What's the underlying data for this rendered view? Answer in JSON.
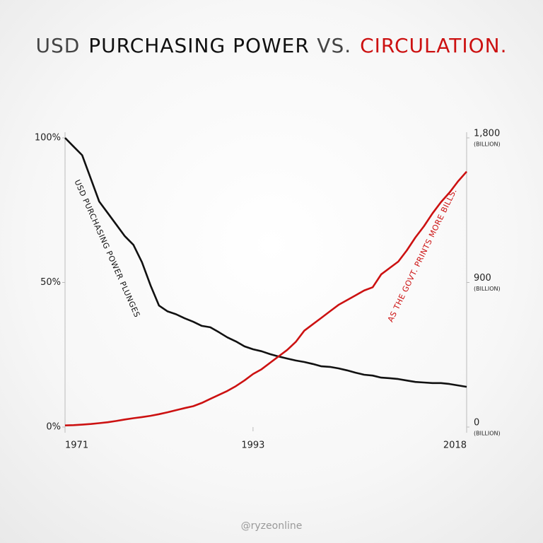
{
  "chart_data": {
    "type": "line",
    "title": [
      {
        "text": "USD",
        "color": "#444444"
      },
      {
        "text": "PURCHASING POWER",
        "color": "#111111"
      },
      {
        "text": "VS.",
        "color": "#444444"
      },
      {
        "text": "CIRCULATION.",
        "color": "#cc1111"
      }
    ],
    "x": [
      1971,
      1972,
      1973,
      1974,
      1975,
      1976,
      1977,
      1978,
      1979,
      1980,
      1981,
      1982,
      1983,
      1984,
      1985,
      1986,
      1987,
      1988,
      1989,
      1990,
      1991,
      1992,
      1993,
      1994,
      1995,
      1996,
      1997,
      1998,
      1999,
      2000,
      2001,
      2002,
      2003,
      2004,
      2005,
      2006,
      2007,
      2008,
      2009,
      2010,
      2011,
      2012,
      2013,
      2014,
      2015,
      2016,
      2017,
      2018
    ],
    "xlim": [
      1971,
      2018
    ],
    "xticks": [
      1971,
      1993,
      2018
    ],
    "ylim": [
      0,
      100
    ],
    "yticks": [
      {
        "value": 0,
        "label": "0%"
      },
      {
        "value": 50,
        "label": "50%"
      },
      {
        "value": 100,
        "label": "100%"
      }
    ],
    "y2lim": [
      0,
      1800
    ],
    "y2ticks": [
      0,
      900,
      {
        "value": 1800,
        "label": "1,800"
      }
    ],
    "y2_unit": "(BILLION)",
    "series": [
      {
        "name": "USD PURCHASING POWER PLUNGES",
        "color": "#111111",
        "axis": "y",
        "values": [
          100,
          97,
          94,
          86,
          78,
          74,
          70,
          66,
          63,
          57,
          49,
          42,
          40,
          39,
          37.6,
          36.4,
          35,
          34.5,
          32.8,
          31,
          29.6,
          27.9,
          26.9,
          26.2,
          25.2,
          24.4,
          23.7,
          23,
          22.5,
          21.8,
          21,
          20.8,
          20.3,
          19.6,
          18.8,
          18.1,
          17.8,
          17.1,
          16.9,
          16.6,
          16.1,
          15.6,
          15.4,
          15.2,
          15.2,
          14.9,
          14.4,
          13.9
        ]
      },
      {
        "name": "AS THE GOVT. PRINTS MORE BILLS.",
        "color": "#cc1111",
        "axis": "y2",
        "values": [
          10,
          12,
          15,
          19,
          24,
          30,
          38,
          47,
          55,
          62,
          70,
          80,
          92,
          105,
          118,
          130,
          150,
          175,
          200,
          225,
          255,
          290,
          330,
          360,
          400,
          440,
          480,
          530,
          600,
          640,
          680,
          720,
          760,
          790,
          820,
          850,
          870,
          950,
          990,
          1030,
          1100,
          1180,
          1250,
          1330,
          1400,
          1460,
          1530,
          1590
        ]
      }
    ],
    "footer": "@ryzeonline"
  }
}
